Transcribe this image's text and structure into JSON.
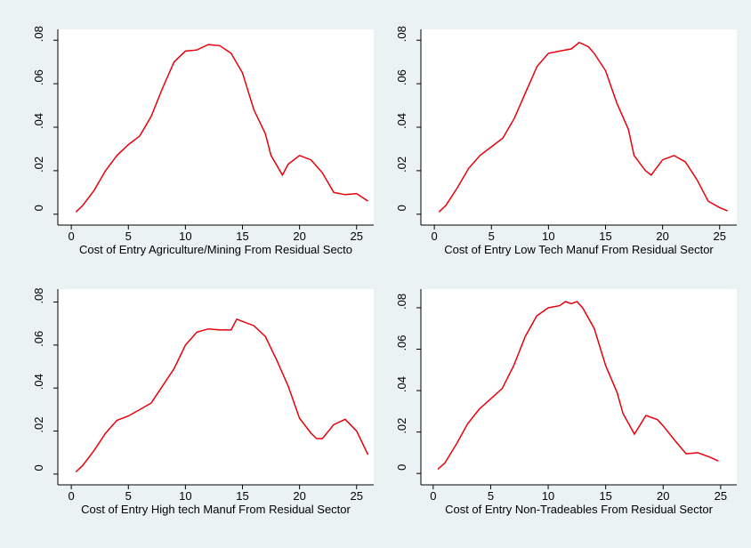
{
  "chart_data": [
    {
      "type": "line",
      "xlabel": "Cost of Entry Agriculture/Mining From Residual Secto",
      "color": "#e8000b",
      "x": [
        0.4,
        1,
        2,
        3,
        4,
        5,
        6,
        7,
        8,
        9,
        10,
        11,
        12,
        13,
        14,
        15,
        16,
        17,
        17.5,
        18.5,
        19,
        20,
        21,
        22,
        23,
        24,
        25,
        26
      ],
      "values": [
        0.001,
        0.004,
        0.011,
        0.02,
        0.027,
        0.032,
        0.036,
        0.045,
        0.058,
        0.07,
        0.075,
        0.0755,
        0.078,
        0.0775,
        0.074,
        0.065,
        0.048,
        0.037,
        0.027,
        0.018,
        0.023,
        0.027,
        0.025,
        0.019,
        0.01,
        0.009,
        0.0095,
        0.006
      ],
      "xlim": [
        -1.18,
        26.5
      ],
      "ylim": [
        -0.005,
        0.085
      ],
      "xticks": [
        0,
        5,
        10,
        15,
        20,
        25
      ],
      "yticks": [
        0,
        {
          "value": 0.02,
          "label": ".02"
        },
        {
          "value": 0.04,
          "label": ".04"
        },
        {
          "value": 0.06,
          "label": ".06"
        },
        {
          "value": 0.08,
          "label": ".08"
        }
      ]
    },
    {
      "type": "line",
      "xlabel": "Cost of Entry Low Tech Manuf From Residual Sector",
      "color": "#e8000b",
      "x": [
        0.4,
        1,
        2,
        3,
        4,
        5,
        6,
        7,
        8,
        9,
        10,
        11,
        12,
        12.7,
        13.5,
        14,
        15,
        16,
        17,
        17.5,
        18.5,
        19,
        20,
        21,
        22,
        23,
        24,
        25,
        25.7
      ],
      "values": [
        0.001,
        0.004,
        0.012,
        0.021,
        0.027,
        0.031,
        0.035,
        0.044,
        0.056,
        0.068,
        0.074,
        0.075,
        0.076,
        0.079,
        0.077,
        0.074,
        0.066,
        0.051,
        0.039,
        0.027,
        0.02,
        0.018,
        0.025,
        0.027,
        0.024,
        0.016,
        0.006,
        0.003,
        0.0015
      ],
      "xlim": [
        -1.18,
        26.5
      ],
      "ylim": [
        -0.005,
        0.085
      ],
      "xticks": [
        0,
        5,
        10,
        15,
        20,
        25
      ],
      "yticks": [
        0,
        {
          "value": 0.02,
          "label": ".02"
        },
        {
          "value": 0.04,
          "label": ".04"
        },
        {
          "value": 0.06,
          "label": ".06"
        },
        {
          "value": 0.08,
          "label": ".08"
        }
      ]
    },
    {
      "type": "line",
      "xlabel": "Cost of Entry High tech Manuf From Residual Sector",
      "color": "#e8000b",
      "x": [
        0.4,
        1,
        2,
        3,
        4,
        5,
        6,
        7,
        8,
        9,
        10,
        11,
        12,
        13,
        14,
        14.5,
        15,
        16,
        17,
        18,
        19,
        20,
        21,
        21.5,
        22,
        23,
        24,
        25,
        26
      ],
      "values": [
        0.001,
        0.004,
        0.011,
        0.019,
        0.025,
        0.027,
        0.03,
        0.033,
        0.041,
        0.049,
        0.06,
        0.066,
        0.0675,
        0.067,
        0.067,
        0.072,
        0.071,
        0.069,
        0.064,
        0.053,
        0.041,
        0.026,
        0.019,
        0.0165,
        0.0165,
        0.023,
        0.0255,
        0.02,
        0.009
      ],
      "xlim": [
        -1.18,
        26.5
      ],
      "ylim": [
        -0.005,
        0.086
      ],
      "xticks": [
        0,
        5,
        10,
        15,
        20,
        25
      ],
      "yticks": [
        0,
        {
          "value": 0.02,
          "label": ".02"
        },
        {
          "value": 0.04,
          "label": ".04"
        },
        {
          "value": 0.06,
          "label": ".06"
        },
        {
          "value": 0.08,
          "label": ".08"
        }
      ]
    },
    {
      "type": "line",
      "xlabel": "Cost of Entry Non-Tradeables From Residual Sector",
      "color": "#e8000b",
      "x": [
        0.4,
        1,
        2,
        3,
        4,
        5,
        6,
        7,
        8,
        9,
        10,
        11,
        11.5,
        12,
        12.5,
        13,
        14,
        15,
        16,
        16.5,
        17.5,
        18.5,
        19.5,
        20,
        21,
        22,
        23,
        24,
        24.8
      ],
      "values": [
        0.002,
        0.005,
        0.014,
        0.024,
        0.031,
        0.036,
        0.041,
        0.052,
        0.066,
        0.076,
        0.08,
        0.081,
        0.083,
        0.082,
        0.083,
        0.08,
        0.07,
        0.052,
        0.039,
        0.029,
        0.019,
        0.028,
        0.026,
        0.023,
        0.016,
        0.0095,
        0.01,
        0.008,
        0.006
      ],
      "xlim": [
        -1.07,
        26.4
      ],
      "ylim": [
        -0.0055,
        0.089
      ],
      "xticks": [
        0,
        5,
        10,
        15,
        20,
        25
      ],
      "yticks": [
        0,
        {
          "value": 0.02,
          "label": ".02"
        },
        {
          "value": 0.04,
          "label": ".04"
        },
        {
          "value": 0.06,
          "label": ".06"
        },
        {
          "value": 0.08,
          "label": ".08"
        }
      ]
    }
  ]
}
